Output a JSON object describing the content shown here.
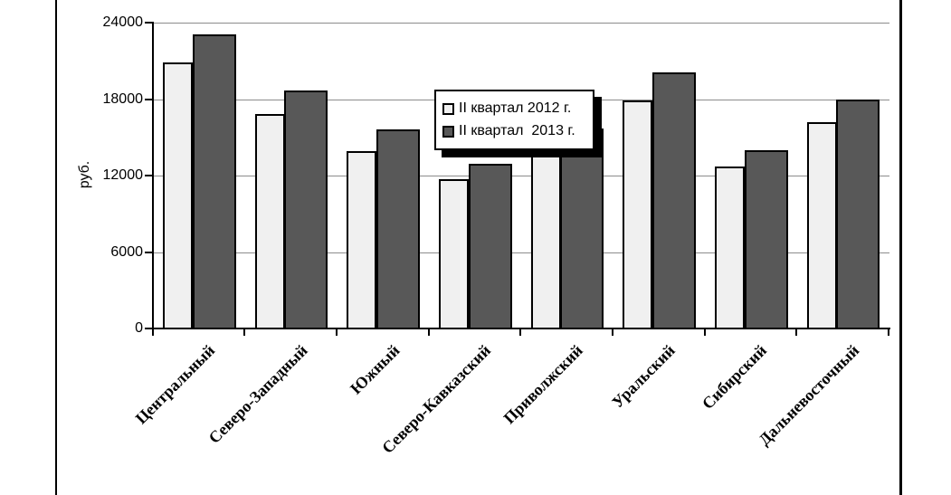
{
  "chart_data": {
    "type": "bar",
    "title": "",
    "ylabel": "руб.",
    "xlabel": "",
    "categories": [
      "Центральный",
      "Северо-Западный",
      "Южный",
      "Северо-Кавказский",
      "Приволжский",
      "Уральский",
      "Сибирский",
      "Дальневосточный"
    ],
    "series": [
      {
        "name": "II квартал 2012 г.",
        "color": "#f0f0f0",
        "values": [
          20900,
          16800,
          13900,
          11700,
          14200,
          17900,
          12700,
          16200
        ]
      },
      {
        "name": "II квартал  2013 г.",
        "color": "#585858",
        "values": [
          23100,
          18700,
          15600,
          12900,
          15700,
          20100,
          14000,
          18000
        ]
      }
    ],
    "ylim": [
      0,
      24000
    ],
    "yticks": [
      0,
      6000,
      12000,
      18000,
      24000
    ],
    "grid": "horizontal",
    "gridline_color": "#8c8c8c",
    "bar_border_color": "#000000",
    "legend_position": "inside-top-center",
    "note_2012_privolzhsky_bar_hidden_behind_legend": true
  }
}
